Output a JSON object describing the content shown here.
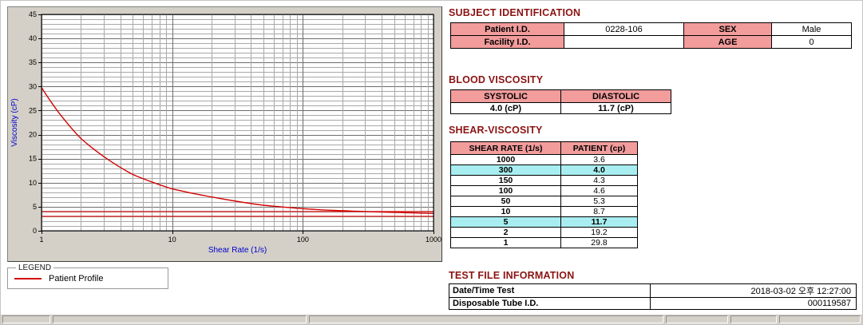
{
  "colors": {
    "heading": "#8b1313",
    "pink": "#f29c9c",
    "cyan": "#a8eef0",
    "curve": "#d40000",
    "axis_blue": "#0000c8",
    "panel_bg": "#d4d0c8"
  },
  "chart_data": {
    "type": "line",
    "title": "",
    "xlabel": "Shear Rate (1/s)",
    "ylabel": "Viscosity (cP)",
    "x_scale": "log",
    "xlim": [
      1,
      1000
    ],
    "ylim": [
      0,
      45
    ],
    "x_ticks": [
      1,
      10,
      100,
      1000
    ],
    "y_ticks": [
      0,
      5,
      10,
      15,
      20,
      25,
      30,
      35,
      40,
      45
    ],
    "grid": true,
    "legend_position": "below-left",
    "series": [
      {
        "name": "Patient Profile",
        "x": [
          1,
          2,
          5,
          10,
          50,
          100,
          150,
          300,
          1000
        ],
        "y": [
          29.8,
          19.2,
          11.7,
          8.7,
          5.3,
          4.6,
          4.3,
          4.0,
          3.6
        ]
      }
    ],
    "marker_lines": [
      4.0,
      3.0
    ]
  },
  "legend": {
    "title": "LEGEND",
    "entry": "Patient Profile"
  },
  "subject": {
    "title": "SUBJECT IDENTIFICATION",
    "rows": [
      {
        "label1": "Patient I.D.",
        "value1": "0228-106",
        "label2": "SEX",
        "value2": "Male"
      },
      {
        "label1": "Facility I.D.",
        "value1": "",
        "label2": "AGE",
        "value2": "0"
      }
    ]
  },
  "blood_viscosity": {
    "title": "BLOOD VISCOSITY",
    "headers": [
      "SYSTOLIC",
      "DIASTOLIC"
    ],
    "values": [
      "4.0 (cP)",
      "11.7 (cP)"
    ]
  },
  "shear_viscosity": {
    "title": "SHEAR-VISCOSITY",
    "headers": [
      "SHEAR RATE (1/s)",
      "PATIENT (cp)"
    ],
    "rows": [
      {
        "rate": "1000",
        "value": "3.6",
        "highlight": false
      },
      {
        "rate": "300",
        "value": "4.0",
        "highlight": true
      },
      {
        "rate": "150",
        "value": "4.3",
        "highlight": false
      },
      {
        "rate": "100",
        "value": "4.6",
        "highlight": false
      },
      {
        "rate": "50",
        "value": "5.3",
        "highlight": false
      },
      {
        "rate": "10",
        "value": "8.7",
        "highlight": false
      },
      {
        "rate": "5",
        "value": "11.7",
        "highlight": true
      },
      {
        "rate": "2",
        "value": "19.2",
        "highlight": false
      },
      {
        "rate": "1",
        "value": "29.8",
        "highlight": false
      }
    ]
  },
  "test_file": {
    "title": "TEST FILE INFORMATION",
    "rows": [
      {
        "label": "Date/Time Test",
        "value": "2018-03-02  오후 12:27:00"
      },
      {
        "label": "Disposable Tube I.D.",
        "value": "000119587"
      }
    ]
  }
}
